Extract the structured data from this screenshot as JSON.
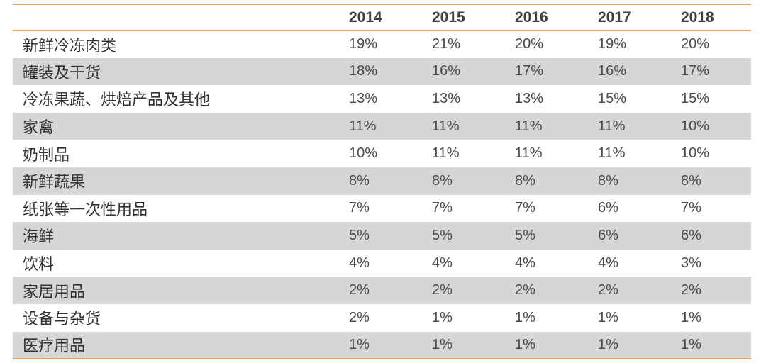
{
  "table": {
    "years": [
      "2014",
      "2015",
      "2016",
      "2017",
      "2018"
    ],
    "rows": [
      {
        "label": "新鲜冷冻肉类",
        "values": [
          "19%",
          "21%",
          "20%",
          "19%",
          "20%"
        ]
      },
      {
        "label": "罐装及干货",
        "values": [
          "18%",
          "16%",
          "17%",
          "16%",
          "17%"
        ]
      },
      {
        "label": "冷冻果蔬、烘焙产品及其他",
        "values": [
          "13%",
          "13%",
          "13%",
          "15%",
          "15%"
        ]
      },
      {
        "label": "家禽",
        "values": [
          "11%",
          "11%",
          "11%",
          "11%",
          "10%"
        ]
      },
      {
        "label": "奶制品",
        "values": [
          "10%",
          "11%",
          "11%",
          "11%",
          "10%"
        ]
      },
      {
        "label": "新鲜蔬果",
        "values": [
          "8%",
          "8%",
          "8%",
          "8%",
          "8%"
        ]
      },
      {
        "label": "纸张等一次性用品",
        "values": [
          "7%",
          "7%",
          "7%",
          "6%",
          "7%"
        ]
      },
      {
        "label": "海鲜",
        "values": [
          "5%",
          "5%",
          "5%",
          "6%",
          "6%"
        ]
      },
      {
        "label": "饮料",
        "values": [
          "4%",
          "4%",
          "4%",
          "4%",
          "3%"
        ]
      },
      {
        "label": "家居用品",
        "values": [
          "2%",
          "2%",
          "2%",
          "2%",
          "2%"
        ]
      },
      {
        "label": "设备与杂货",
        "values": [
          "2%",
          "1%",
          "1%",
          "1%",
          "1%"
        ]
      },
      {
        "label": "医疗用品",
        "values": [
          "1%",
          "1%",
          "1%",
          "1%",
          "1%"
        ]
      }
    ]
  },
  "colors": {
    "rule": "#f0a860",
    "shade": "#d6d6d6",
    "text": "#404040"
  }
}
